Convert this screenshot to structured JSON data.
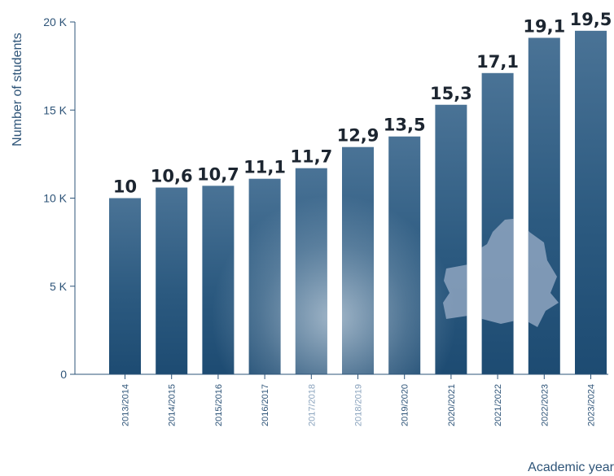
{
  "chart_data": {
    "type": "bar",
    "categories": [
      "2013/2014",
      "2014/2015",
      "2015/2016",
      "2016/2017",
      "2017/2018",
      "2018/2019",
      "2019/2020",
      "2020/2021",
      "2021/2022",
      "2022/2023",
      "2023/2024"
    ],
    "values": [
      10,
      10.6,
      10.7,
      11.1,
      11.7,
      12.9,
      13.5,
      15.3,
      17.1,
      19.1,
      19.5
    ],
    "data_labels": [
      "10",
      "10,6",
      "10,7",
      "11,1",
      "11,7",
      "12,9",
      "13,5",
      "15,3",
      "17,1",
      "19,1",
      "19,5"
    ],
    "title": "",
    "xlabel": "Academic year",
    "ylabel": "Number of students",
    "ylim": [
      0,
      20
    ],
    "yticks": [
      0,
      5,
      10,
      15,
      20
    ],
    "ytick_labels": [
      "0",
      "5 K",
      "10 K",
      "15 K",
      "20 K"
    ],
    "grid": false,
    "legend": "none",
    "colors": {
      "bar_dark": "#1f4e74",
      "bar_mid": "#3a6a90",
      "bar_light": "#7f9db7",
      "axis": "#2e5478",
      "label": "#1c2530",
      "map": "#8ea4c0"
    }
  }
}
